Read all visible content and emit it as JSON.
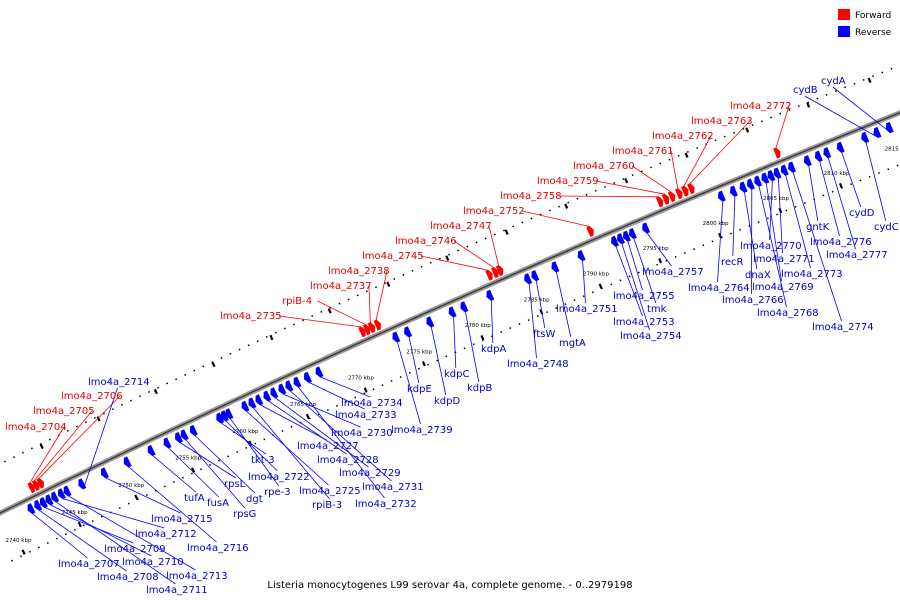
{
  "caption": "Listeria monocytogenes L99 serovar 4a, complete genome. - 0..2979198",
  "legend": [
    {
      "label": "Forward",
      "color": "#ff0000"
    },
    {
      "label": "Reverse",
      "color": "#0000ff"
    }
  ],
  "axis": {
    "unit": "kbp",
    "ticks": [
      {
        "kbp": 2740,
        "label": "2740 kbp"
      },
      {
        "kbp": 2745,
        "label": "2745 kbp"
      },
      {
        "kbp": 2750,
        "label": "2750 kbp"
      },
      {
        "kbp": 2755,
        "label": "2755 kbp"
      },
      {
        "kbp": 2760,
        "label": "2760 kbp"
      },
      {
        "kbp": 2765,
        "label": "2765 kbp"
      },
      {
        "kbp": 2770,
        "label": "2770 kbp"
      },
      {
        "kbp": 2775,
        "label": "2775 kbp"
      },
      {
        "kbp": 2780,
        "label": "2780 kbp"
      },
      {
        "kbp": 2785,
        "label": "2785 kbp"
      },
      {
        "kbp": 2790,
        "label": "2790 kbp"
      },
      {
        "kbp": 2795,
        "label": "2795 kbp"
      },
      {
        "kbp": 2800,
        "label": "2800 kbp"
      },
      {
        "kbp": 2805,
        "label": "2805 kbp"
      },
      {
        "kbp": 2810,
        "label": "2810 kbp"
      },
      {
        "kbp": 2815,
        "label": "2815 kbp"
      }
    ]
  },
  "forward_genes": [
    {
      "kbp": 2742.9,
      "label": "lmo4a_2704"
    },
    {
      "kbp": 2743.3,
      "label": "lmo4a_2705"
    },
    {
      "kbp": 2743.7,
      "label": "lmo4a_2706"
    },
    {
      "kbp": 2771.7,
      "label": "lmo4a_2735"
    },
    {
      "kbp": 2772.1,
      "label": "rpiB-4"
    },
    {
      "kbp": 2772.5,
      "label": "lmo4a_2737"
    },
    {
      "kbp": 2773.0,
      "label": "lmo4a_2738"
    },
    {
      "kbp": 2782.5,
      "label": "lmo4a_2745"
    },
    {
      "kbp": 2783.0,
      "label": "lmo4a_2746"
    },
    {
      "kbp": 2783.4,
      "label": "lmo4a_2747"
    },
    {
      "kbp": 2791.0,
      "label": "lmo4a_2752"
    },
    {
      "kbp": 2796.8,
      "label": "lmo4a_2758"
    },
    {
      "kbp": 2797.3,
      "label": "lmo4a_2759"
    },
    {
      "kbp": 2797.8,
      "label": "lmo4a_2760"
    },
    {
      "kbp": 2798.4,
      "label": "lmo4a_2761"
    },
    {
      "kbp": 2798.9,
      "label": "lmo4a_2762"
    },
    {
      "kbp": 2799.4,
      "label": "lmo4a_2763"
    },
    {
      "kbp": 2806.5,
      "label": "lmo4a_2772"
    }
  ],
  "reverse_genes": [
    {
      "kbp": 2742.0,
      "label": "lmo4a_2707"
    },
    {
      "kbp": 2742.6,
      "label": "lmo4a_2708"
    },
    {
      "kbp": 2743.1,
      "label": "lmo4a_2709"
    },
    {
      "kbp": 2743.6,
      "label": "lmo4a_2710"
    },
    {
      "kbp": 2744.1,
      "label": "lmo4a_2711"
    },
    {
      "kbp": 2744.7,
      "label": "lmo4a_2712"
    },
    {
      "kbp": 2745.2,
      "label": "lmo4a_2713"
    },
    {
      "kbp": 2746.5,
      "label": "lmo4a_2714"
    },
    {
      "kbp": 2748.5,
      "label": "lmo4a_2715"
    },
    {
      "kbp": 2750.5,
      "label": "lmo4a_2716"
    },
    {
      "kbp": 2752.6,
      "label": "tufA"
    },
    {
      "kbp": 2754.0,
      "label": "fusA"
    },
    {
      "kbp": 2755.0,
      "label": "rpsL"
    },
    {
      "kbp": 2755.5,
      "label": "rpsG"
    },
    {
      "kbp": 2756.3,
      "label": "dgt"
    },
    {
      "kbp": 2759.0,
      "label": "lmo4a_2722"
    },
    {
      "kbp": 2758.6,
      "label": "tkt-3"
    },
    {
      "kbp": 2759.4,
      "label": "rpe-3"
    },
    {
      "kbp": 2760.8,
      "label": "lmo4a_2725"
    },
    {
      "kbp": 2761.4,
      "label": "rpiB-3"
    },
    {
      "kbp": 2762.0,
      "label": "lmo4a_2727"
    },
    {
      "kbp": 2762.7,
      "label": "lmo4a_2728"
    },
    {
      "kbp": 2763.3,
      "label": "lmo4a_2729"
    },
    {
      "kbp": 2764.0,
      "label": "lmo4a_2730"
    },
    {
      "kbp": 2764.6,
      "label": "lmo4a_2731"
    },
    {
      "kbp": 2765.3,
      "label": "lmo4a_2732"
    },
    {
      "kbp": 2766.2,
      "label": "lmo4a_2733"
    },
    {
      "kbp": 2767.2,
      "label": "lmo4a_2734"
    },
    {
      "kbp": 2773.8,
      "label": "lmo4a_2739"
    },
    {
      "kbp": 2774.8,
      "label": "kdpE"
    },
    {
      "kbp": 2776.7,
      "label": "kdpD"
    },
    {
      "kbp": 2778.6,
      "label": "kdpC"
    },
    {
      "kbp": 2779.6,
      "label": "kdpB"
    },
    {
      "kbp": 2781.8,
      "label": "kdpA"
    },
    {
      "kbp": 2785.0,
      "label": "lmo4a_2748"
    },
    {
      "kbp": 2785.6,
      "label": "ftsW"
    },
    {
      "kbp": 2787.3,
      "label": "mgtA"
    },
    {
      "kbp": 2789.5,
      "label": "lmo4a_2751"
    },
    {
      "kbp": 2792.3,
      "label": "lmo4a_2753"
    },
    {
      "kbp": 2792.8,
      "label": "lmo4a_2754"
    },
    {
      "kbp": 2793.3,
      "label": "lmo4a_2755"
    },
    {
      "kbp": 2793.8,
      "label": "tmk"
    },
    {
      "kbp": 2794.9,
      "label": "lmo4a_2757"
    },
    {
      "kbp": 2801.2,
      "label": "lmo4a_2764"
    },
    {
      "kbp": 2802.2,
      "label": "recR"
    },
    {
      "kbp": 2803.0,
      "label": "dnaX"
    },
    {
      "kbp": 2803.6,
      "label": "lmo4a_2766"
    },
    {
      "kbp": 2804.2,
      "label": "lmo4a_2768"
    },
    {
      "kbp": 2804.8,
      "label": "lmo4a_2769"
    },
    {
      "kbp": 2805.3,
      "label": "lmo4a_2770"
    },
    {
      "kbp": 2805.8,
      "label": "lmo4a_2771"
    },
    {
      "kbp": 2806.4,
      "label": "lmo4a_2773"
    },
    {
      "kbp": 2807.0,
      "label": "lmo4a_2774"
    },
    {
      "kbp": 2808.3,
      "label": "gntK"
    },
    {
      "kbp": 2809.2,
      "label": "lmo4a_2776"
    },
    {
      "kbp": 2809.9,
      "label": "lmo4a_2777"
    },
    {
      "kbp": 2811.0,
      "label": "cydD"
    },
    {
      "kbp": 2813.0,
      "label": "cydC"
    },
    {
      "kbp": 2814.0,
      "label": "cydB"
    },
    {
      "kbp": 2815.0,
      "label": "cydA"
    }
  ]
}
